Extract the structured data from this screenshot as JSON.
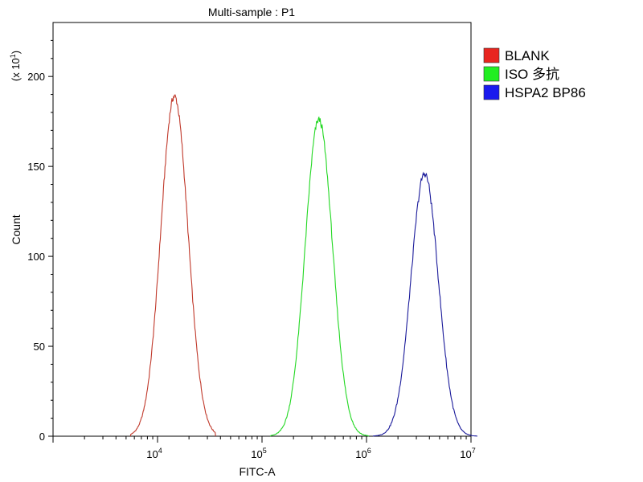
{
  "chart_data": {
    "type": "line",
    "title": "Multi-sample : P1",
    "xlabel": "FITC-A",
    "ylabel": "Count",
    "y_multiplier": "(x 10",
    "y_multiplier_exp": "1",
    "y_multiplier_close": ")",
    "x_scale": "log",
    "xlim": [
      1000,
      10000000
    ],
    "ylim": [
      0,
      230
    ],
    "x_ticks": [
      {
        "base": "10",
        "exp": "4",
        "value": 10000
      },
      {
        "base": "10",
        "exp": "5",
        "value": 100000
      },
      {
        "base": "10",
        "exp": "6",
        "value": 1000000
      },
      {
        "base": "10",
        "exp": "7",
        "value": 10000000
      }
    ],
    "y_ticks": [
      0,
      50,
      100,
      150,
      200
    ],
    "y_tick_labels": [
      "0",
      "50",
      "100",
      "150",
      "200"
    ],
    "grid": false,
    "legend_position": "right",
    "series": [
      {
        "name": "BLANK",
        "color": "#c0392b",
        "legend_color": "#e8251f",
        "peak_x": 14500,
        "peak_y": 189,
        "x_range": [
          5500,
          36000
        ],
        "width": 0.13
      },
      {
        "name": "ISO 多抗",
        "color": "#22d822",
        "legend_color": "#22ee22",
        "peak_x": 350000,
        "peak_y": 176,
        "x_range": [
          120000,
          1050000
        ],
        "width": 0.13
      },
      {
        "name": "HSPA2 BP86",
        "color": "#1a1a9a",
        "legend_color": "#1a1aee",
        "peak_x": 3600000,
        "peak_y": 146,
        "x_range": [
          1150000,
          11500000
        ],
        "width": 0.13
      }
    ]
  }
}
